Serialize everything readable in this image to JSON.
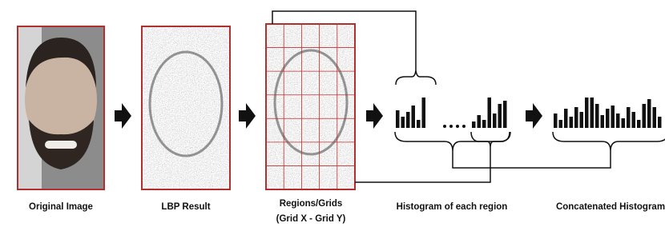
{
  "steps": [
    {
      "label": "Original Image"
    },
    {
      "label": "LBP Result"
    },
    {
      "label": "Regions/Grids",
      "sublabel": "(Grid X - Grid Y)"
    },
    {
      "label": "Histogram of each region"
    },
    {
      "label": "Concatenated Histogram"
    }
  ]
}
